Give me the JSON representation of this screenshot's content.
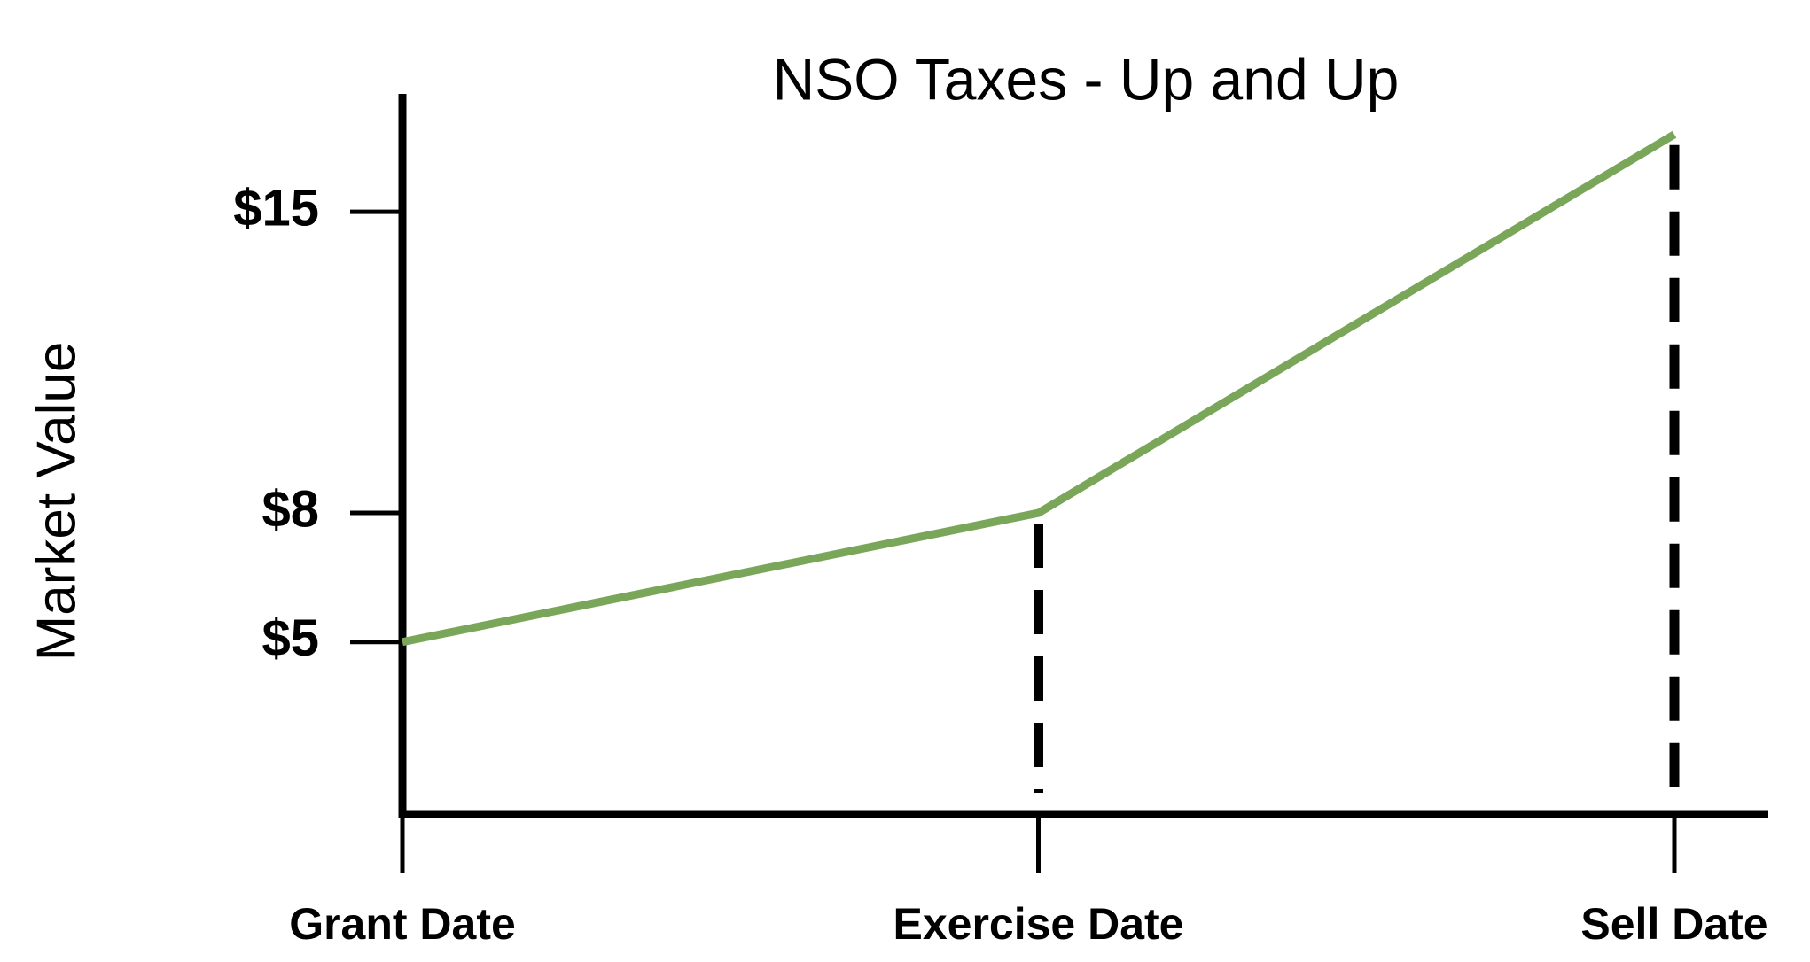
{
  "chart_data": {
    "type": "line",
    "title": "NSO Taxes - Up and Up",
    "y_label": "Market Value",
    "categories": [
      "Grant Date",
      "Exercise Date",
      "Sell Date"
    ],
    "series": [
      {
        "name": "Market Value",
        "color": "#7aa65a",
        "values": [
          5,
          8,
          16.8
        ]
      }
    ],
    "ylim": [
      1,
      17.7
    ],
    "yticks": [
      {
        "value": 5,
        "label": "$5"
      },
      {
        "value": 8,
        "label": "$8"
      },
      {
        "value": 15,
        "label": "$15"
      }
    ]
  }
}
